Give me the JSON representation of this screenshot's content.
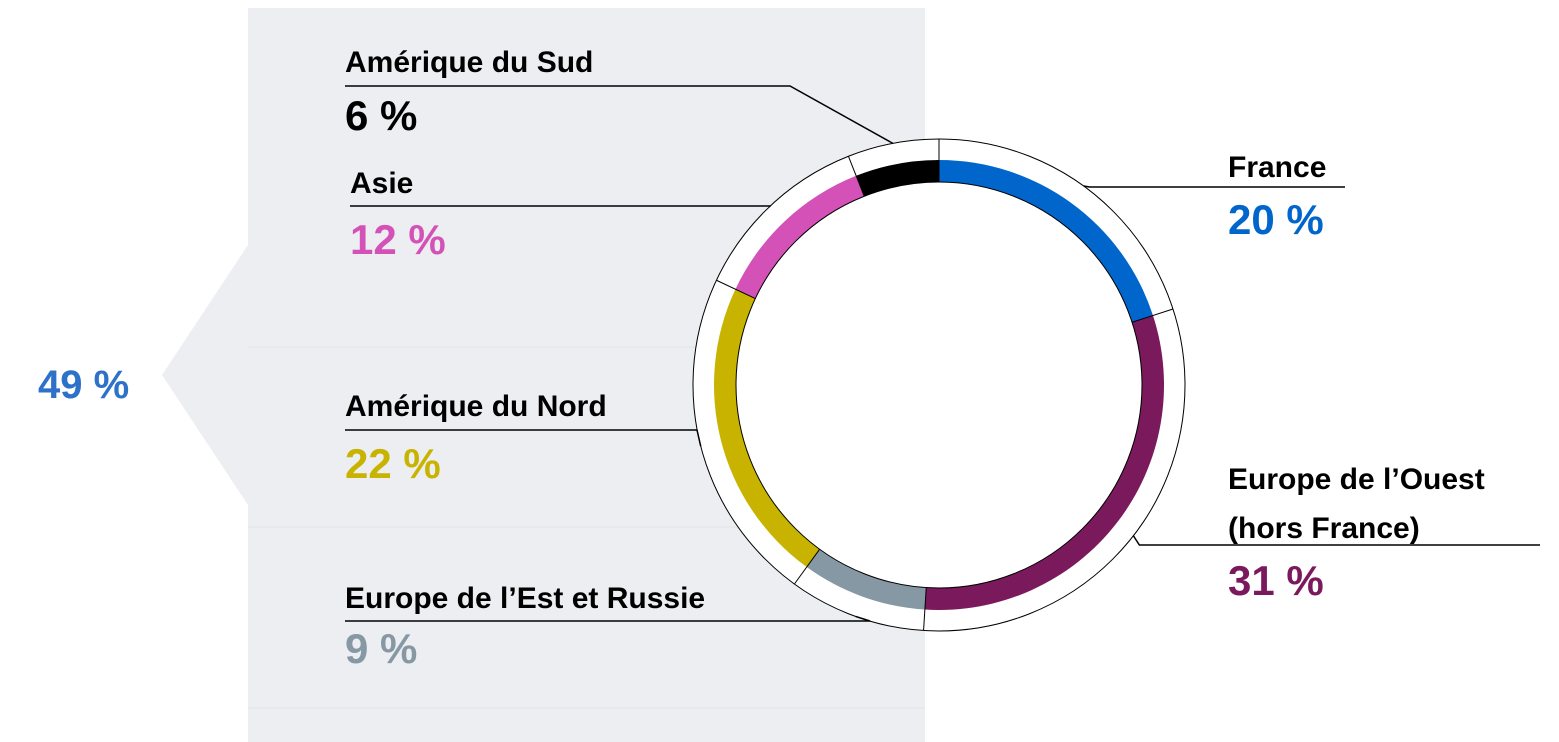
{
  "chart_data": {
    "type": "donut",
    "categories": [
      "France",
      "Europe de l’Ouest (hors France)",
      "Europe de l’Est et Russie",
      "Amérique du Nord",
      "Asie",
      "Amérique du Sud"
    ],
    "values": [
      20,
      31,
      9,
      22,
      12,
      6
    ],
    "value_labels": [
      "20 %",
      "31 %",
      "9 %",
      "22 %",
      "12 %",
      "6 %"
    ],
    "colors": [
      "#0066cc",
      "#7a1a5c",
      "#8598a4",
      "#c8b400",
      "#d452b8",
      "#000000"
    ],
    "annotation": "49 %"
  }
}
